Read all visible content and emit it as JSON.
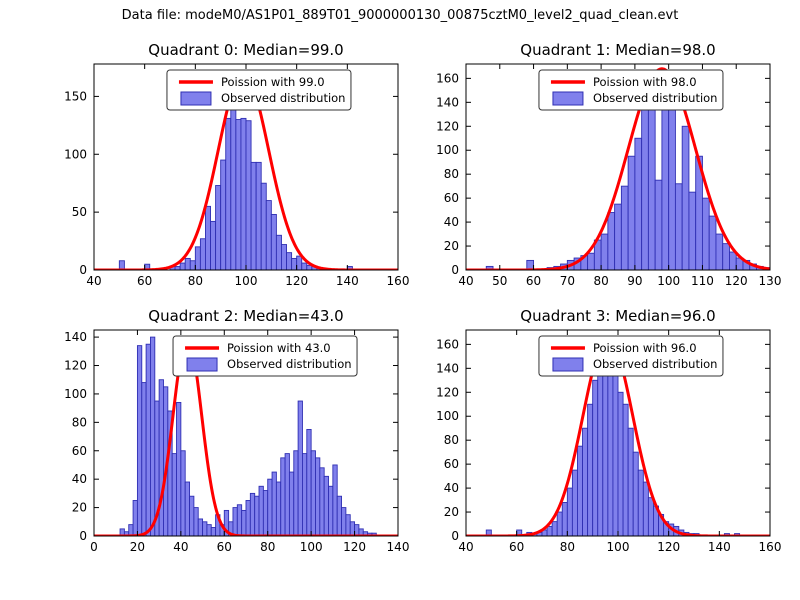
{
  "figure": {
    "title": "Data file: modeM0/AS1P01_889T01_9000000130_00875cztM0_level2_quad_clean.evt"
  },
  "colors": {
    "background": "#ffffff",
    "axis_color": "#000000",
    "bar_fill": "#8080ec",
    "bar_edge": "#2f2fb3",
    "curve_color": "#ff0000",
    "legend_border": "#333333"
  },
  "chart_data": [
    {
      "type": "histogram_with_fit",
      "title": "Quadrant 0: Median=99.0",
      "median": 99.0,
      "legend": [
        "Poission with 99.0",
        "Observed distribution"
      ],
      "xlim": [
        40,
        160
      ],
      "ylim": [
        0,
        178
      ],
      "xticks": [
        40,
        60,
        80,
        100,
        120,
        140,
        160
      ],
      "yticks": [
        0,
        50,
        100,
        150
      ],
      "bin_start": 50,
      "bin_width": 2,
      "counts": [
        8,
        0,
        0,
        0,
        0,
        5,
        0,
        0,
        0,
        0,
        3,
        3,
        6,
        10,
        8,
        20,
        27,
        55,
        42,
        73,
        95,
        131,
        148,
        130,
        131,
        129,
        93,
        93,
        75,
        60,
        48,
        30,
        22,
        15,
        10,
        12,
        6,
        4,
        3,
        2,
        0,
        0,
        0,
        0,
        0,
        3,
        0,
        0
      ],
      "curve": {
        "mean": 99,
        "sigma": 10.0,
        "amplitude": 170
      },
      "legend_x": 0.24
    },
    {
      "type": "histogram_with_fit",
      "title": "Quadrant 1: Median=98.0",
      "median": 98.0,
      "legend": [
        "Poission with 98.0",
        "Observed distribution"
      ],
      "xlim": [
        40,
        130
      ],
      "ylim": [
        0,
        172
      ],
      "xticks": [
        40,
        50,
        60,
        70,
        80,
        90,
        100,
        110,
        120,
        130
      ],
      "yticks": [
        0,
        20,
        40,
        60,
        80,
        100,
        120,
        140,
        160
      ],
      "bin_start": 46,
      "bin_width": 2,
      "counts": [
        3,
        0,
        0,
        0,
        0,
        0,
        8,
        0,
        0,
        2,
        3,
        5,
        8,
        10,
        12,
        14,
        25,
        30,
        48,
        55,
        70,
        95,
        110,
        135,
        162,
        75,
        160,
        150,
        72,
        120,
        65,
        95,
        60,
        45,
        30,
        22,
        15,
        10,
        8,
        5,
        3,
        2
      ],
      "curve": {
        "mean": 98,
        "sigma": 9.9,
        "amplitude": 168
      },
      "legend_x": 0.24
    },
    {
      "type": "histogram_with_fit",
      "title": "Quadrant 2: Median=43.0",
      "median": 43.0,
      "legend": [
        "Poission with 43.0",
        "Observed distribution"
      ],
      "xlim": [
        0,
        140
      ],
      "ylim": [
        0,
        145
      ],
      "xticks": [
        0,
        20,
        40,
        60,
        80,
        100,
        120,
        140
      ],
      "yticks": [
        0,
        20,
        40,
        60,
        80,
        100,
        120,
        140
      ],
      "bin_start": 12,
      "bin_width": 2,
      "counts": [
        5,
        3,
        8,
        25,
        134,
        108,
        135,
        140,
        95,
        110,
        105,
        88,
        58,
        94,
        60,
        38,
        28,
        20,
        12,
        10,
        8,
        6,
        15,
        8,
        18,
        10,
        20,
        22,
        18,
        25,
        30,
        28,
        35,
        32,
        40,
        45,
        38,
        55,
        58,
        45,
        60,
        95,
        58,
        75,
        60,
        55,
        48,
        42,
        35,
        50,
        28,
        20,
        15,
        10,
        8,
        5,
        3,
        2,
        2
      ],
      "curve": {
        "mean": 43,
        "sigma": 6.6,
        "amplitude": 140
      },
      "legend_x": 0.26
    },
    {
      "type": "histogram_with_fit",
      "title": "Quadrant 3: Median=96.0",
      "median": 96.0,
      "legend": [
        "Poission with 96.0",
        "Observed distribution"
      ],
      "xlim": [
        40,
        160
      ],
      "ylim": [
        0,
        172
      ],
      "xticks": [
        40,
        60,
        80,
        100,
        120,
        140,
        160
      ],
      "yticks": [
        0,
        20,
        40,
        60,
        80,
        100,
        120,
        140,
        160
      ],
      "bin_start": 48,
      "bin_width": 2,
      "counts": [
        5,
        0,
        0,
        0,
        0,
        0,
        5,
        0,
        3,
        2,
        3,
        5,
        8,
        12,
        20,
        28,
        40,
        55,
        75,
        90,
        110,
        130,
        145,
        160,
        150,
        140,
        120,
        110,
        90,
        70,
        55,
        45,
        32,
        25,
        18,
        12,
        10,
        8,
        5,
        3,
        2,
        2,
        0,
        0,
        0,
        0,
        0,
        2,
        0,
        2,
        0
      ],
      "curve": {
        "mean": 96,
        "sigma": 9.8,
        "amplitude": 166
      },
      "legend_x": 0.24
    }
  ]
}
